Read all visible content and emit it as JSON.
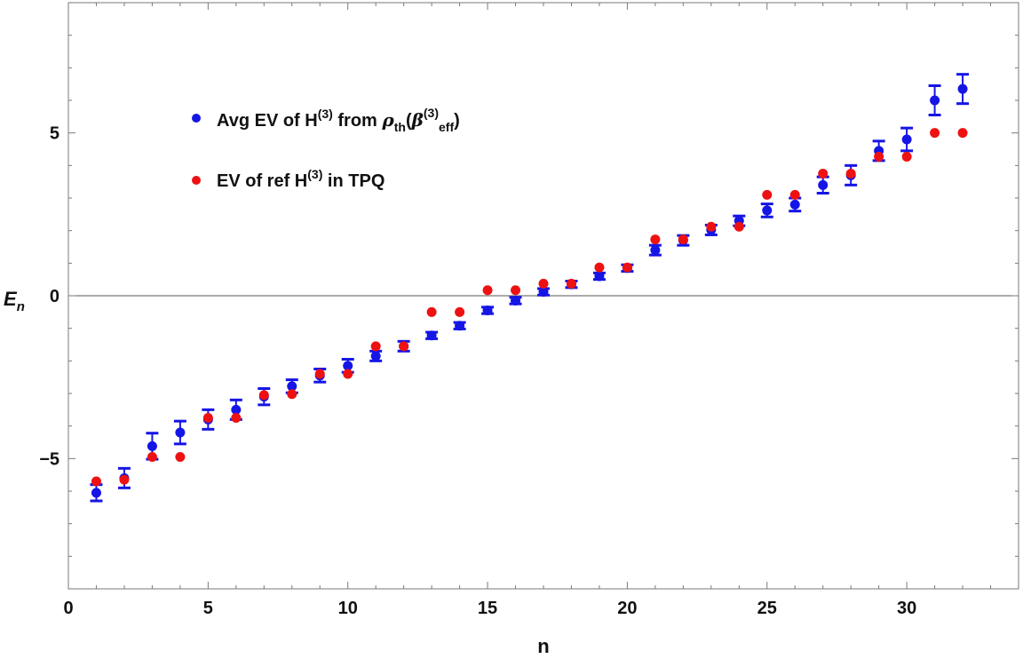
{
  "chart_data": {
    "type": "scatter",
    "xlabel": "n",
    "ylabel": "E",
    "ylabel_sub": "n",
    "xlim": [
      0,
      34
    ],
    "ylim": [
      -9,
      9
    ],
    "x_ticks": [
      0,
      5,
      10,
      15,
      20,
      25,
      30
    ],
    "y_ticks": [
      -5,
      0,
      5
    ],
    "grid": false,
    "colors": {
      "blue": "#1515e6",
      "red": "#ee1111"
    },
    "series": [
      {
        "legend": {
          "p1": "Avg EV of H",
          "sup1": "(3)",
          "p2": " from ",
          "rho": "ρ",
          "sub1": "th",
          "p3": "(",
          "beta": "β",
          "sup2": "(3)",
          "sub2": "eff",
          "p4": ")"
        },
        "color": "#1515e6",
        "has_error_bars": true,
        "x": [
          1,
          2,
          3,
          4,
          5,
          6,
          7,
          8,
          9,
          10,
          11,
          12,
          13,
          14,
          15,
          16,
          17,
          18,
          19,
          20,
          21,
          22,
          23,
          24,
          25,
          26,
          27,
          28,
          29,
          30,
          31,
          32
        ],
        "y": [
          -6.05,
          -5.6,
          -4.62,
          -4.2,
          -3.8,
          -3.5,
          -3.1,
          -2.78,
          -2.45,
          -2.15,
          -1.85,
          -1.55,
          -1.22,
          -0.92,
          -0.45,
          -0.15,
          0.12,
          0.35,
          0.6,
          0.85,
          1.4,
          1.7,
          2.02,
          2.3,
          2.62,
          2.8,
          3.4,
          3.7,
          4.45,
          4.8,
          6.0,
          6.35
        ],
        "err": [
          0.25,
          0.3,
          0.4,
          0.35,
          0.3,
          0.3,
          0.25,
          0.2,
          0.2,
          0.2,
          0.15,
          0.15,
          0.1,
          0.1,
          0.1,
          0.1,
          0.1,
          0.1,
          0.1,
          0.1,
          0.15,
          0.15,
          0.15,
          0.15,
          0.2,
          0.2,
          0.25,
          0.3,
          0.3,
          0.35,
          0.45,
          0.45
        ]
      },
      {
        "legend": {
          "p1": "EV of ref H",
          "sup1": "(3)",
          "p2": " in TPQ"
        },
        "color": "#ee1111",
        "has_error_bars": false,
        "x": [
          1,
          2,
          3,
          4,
          5,
          6,
          7,
          8,
          9,
          10,
          11,
          12,
          13,
          14,
          15,
          16,
          17,
          18,
          19,
          20,
          21,
          22,
          23,
          24,
          25,
          26,
          27,
          28,
          29,
          30,
          31,
          32
        ],
        "y": [
          -5.7,
          -5.65,
          -4.95,
          -4.95,
          -3.75,
          -3.75,
          -3.05,
          -3.02,
          -2.4,
          -2.4,
          -1.55,
          -1.55,
          -0.5,
          -0.5,
          0.17,
          0.17,
          0.37,
          0.37,
          0.87,
          0.87,
          1.73,
          1.73,
          2.12,
          2.12,
          3.1,
          3.1,
          3.75,
          3.75,
          4.27,
          4.27,
          5.0,
          5.0
        ]
      }
    ]
  }
}
